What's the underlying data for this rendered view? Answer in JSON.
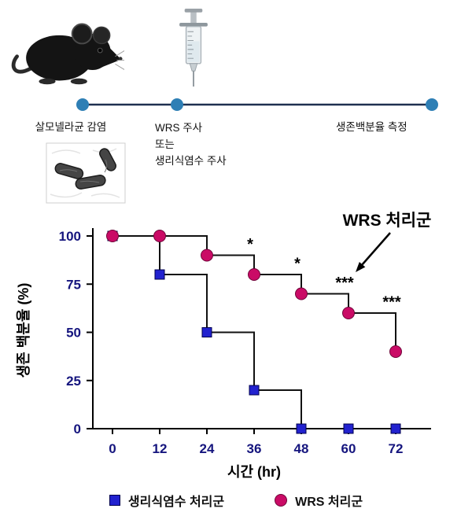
{
  "figure": {
    "timeline": {
      "line_color": "#1f3050",
      "dot_color": "#2e7fb5",
      "events": [
        {
          "label": "살모넬라균 감염"
        },
        {
          "lines": [
            "WRS 주사",
            "또는",
            "생리식염수 주사"
          ]
        },
        {
          "label": "생존백분율 측정"
        }
      ]
    }
  },
  "chart_data": {
    "type": "line",
    "subtype": "step_survival",
    "title": "",
    "xlabel": "시간 (hr)",
    "ylabel": "생존 백분율 (%)",
    "x": [
      0,
      12,
      24,
      36,
      48,
      60,
      72
    ],
    "xlim": [
      0,
      78
    ],
    "ylim": [
      0,
      100
    ],
    "yticks": [
      0,
      25,
      50,
      75,
      100
    ],
    "grid": false,
    "line_color": "#111111",
    "tick_label_color": "#15157e",
    "series": [
      {
        "name": "생리식염수 처리군",
        "marker": "square",
        "color": "#2222cf",
        "values": [
          100,
          80,
          50,
          20,
          0,
          0,
          0
        ]
      },
      {
        "name": "WRS 처리군",
        "marker": "circle",
        "color": "#ca0b66",
        "values": [
          100,
          100,
          90,
          80,
          70,
          60,
          40
        ]
      }
    ],
    "annotations": [
      {
        "text": "*",
        "x": 35,
        "y": 93
      },
      {
        "text": "*",
        "x": 47,
        "y": 83
      },
      {
        "text": "***",
        "x": 59,
        "y": 73
      },
      {
        "text": "***",
        "x": 71,
        "y": 63
      }
    ],
    "callout": {
      "text": "WRS 처리군"
    },
    "legend_position": "bottom"
  }
}
